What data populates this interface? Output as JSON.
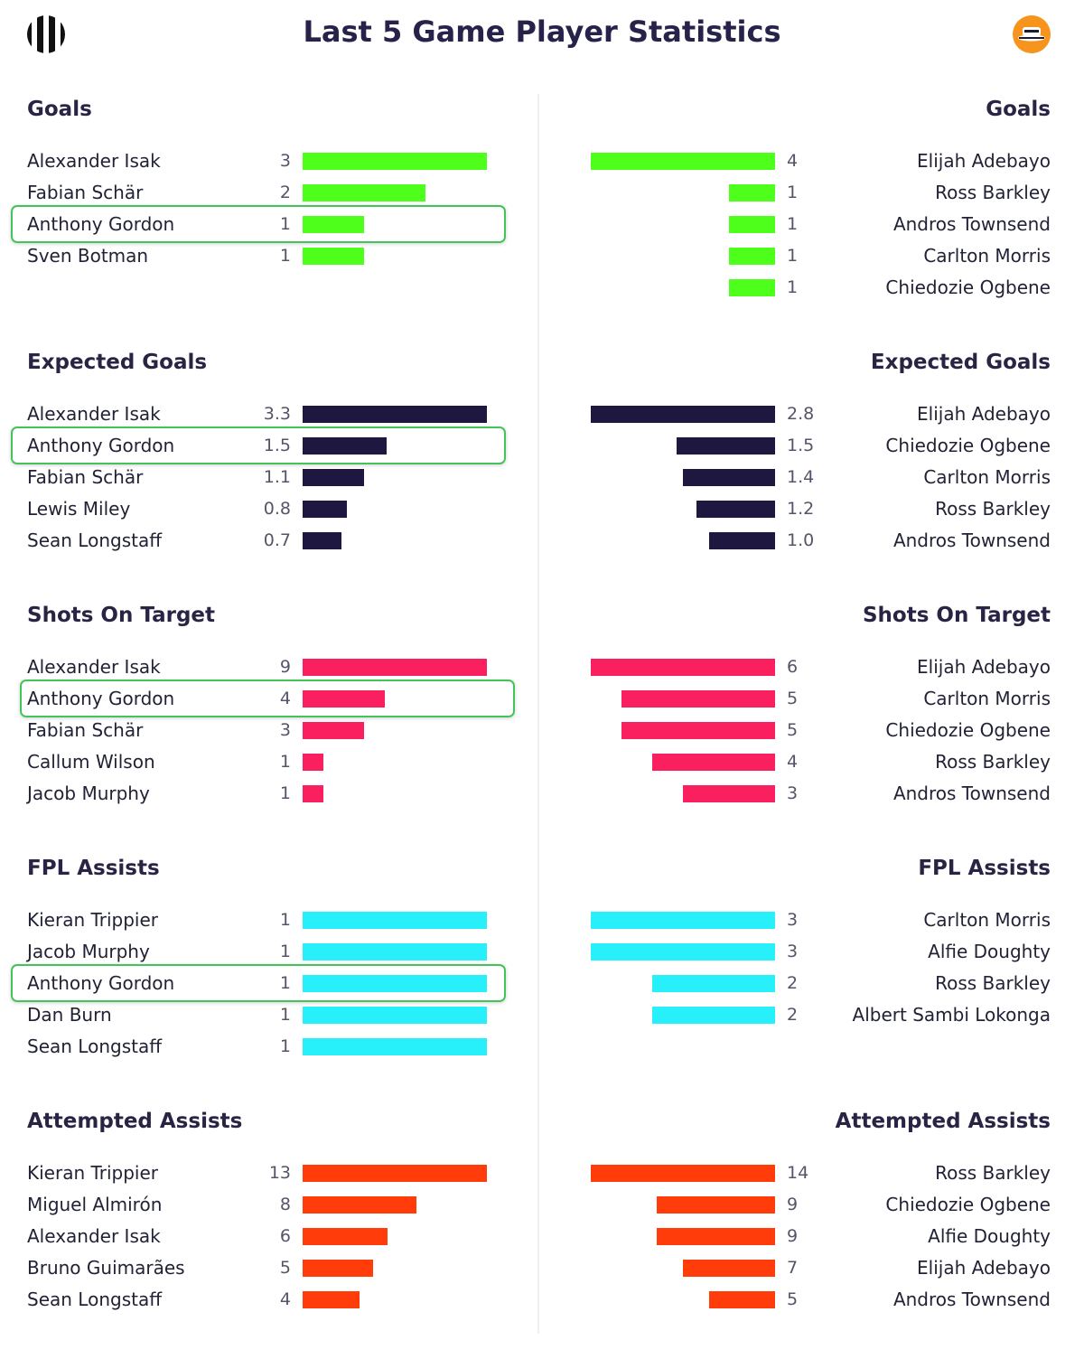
{
  "title": "Last 5 Game Player Statistics",
  "icons": {
    "left_logo": "newcastle-stripes-logo",
    "right_logo": "luton-hat-logo"
  },
  "chart_data": [
    {
      "type": "bar",
      "stat": "Goals",
      "color": "#4dff1a",
      "left": {
        "players": [
          {
            "name": "Alexander Isak",
            "value": 3,
            "label": "3"
          },
          {
            "name": "Fabian Schär",
            "value": 2,
            "label": "2"
          },
          {
            "name": "Anthony Gordon",
            "value": 1,
            "label": "1",
            "highlight": true
          },
          {
            "name": "Sven Botman",
            "value": 1,
            "label": "1"
          }
        ]
      },
      "right": {
        "players": [
          {
            "name": "Elijah Adebayo",
            "value": 4,
            "label": "4"
          },
          {
            "name": "Ross Barkley",
            "value": 1,
            "label": "1"
          },
          {
            "name": "Andros Townsend",
            "value": 1,
            "label": "1"
          },
          {
            "name": "Carlton Morris",
            "value": 1,
            "label": "1"
          },
          {
            "name": "Chiedozie Ogbene",
            "value": 1,
            "label": "1"
          }
        ]
      }
    },
    {
      "type": "bar",
      "stat": "Expected Goals",
      "color": "#1e1740",
      "left": {
        "players": [
          {
            "name": "Alexander Isak",
            "value": 3.3,
            "label": "3.3"
          },
          {
            "name": "Anthony Gordon",
            "value": 1.5,
            "label": "1.5",
            "highlight": true
          },
          {
            "name": "Fabian Schär",
            "value": 1.1,
            "label": "1.1"
          },
          {
            "name": "Lewis Miley",
            "value": 0.8,
            "label": "0.8"
          },
          {
            "name": "Sean Longstaff",
            "value": 0.7,
            "label": "0.7"
          }
        ]
      },
      "right": {
        "players": [
          {
            "name": "Elijah Adebayo",
            "value": 2.8,
            "label": "2.8"
          },
          {
            "name": "Chiedozie Ogbene",
            "value": 1.5,
            "label": "1.5"
          },
          {
            "name": "Carlton Morris",
            "value": 1.4,
            "label": "1.4"
          },
          {
            "name": "Ross Barkley",
            "value": 1.2,
            "label": "1.2"
          },
          {
            "name": "Andros Townsend",
            "value": 1.0,
            "label": "1.0"
          }
        ]
      }
    },
    {
      "type": "bar",
      "stat": "Shots On Target",
      "color": "#fa1f5f",
      "left": {
        "players": [
          {
            "name": "Alexander Isak",
            "value": 9,
            "label": "9"
          },
          {
            "name": "Anthony Gordon",
            "value": 4,
            "label": "4",
            "highlight": true
          },
          {
            "name": "Fabian Schär",
            "value": 3,
            "label": "3"
          },
          {
            "name": "Callum Wilson",
            "value": 1,
            "label": "1"
          },
          {
            "name": "Jacob Murphy",
            "value": 1,
            "label": "1"
          }
        ]
      },
      "right": {
        "players": [
          {
            "name": "Elijah Adebayo",
            "value": 6,
            "label": "6"
          },
          {
            "name": "Carlton Morris",
            "value": 5,
            "label": "5"
          },
          {
            "name": "Chiedozie Ogbene",
            "value": 5,
            "label": "5"
          },
          {
            "name": "Ross Barkley",
            "value": 4,
            "label": "4"
          },
          {
            "name": "Andros Townsend",
            "value": 3,
            "label": "3"
          }
        ]
      }
    },
    {
      "type": "bar",
      "stat": "FPL Assists",
      "color": "#27f0fa",
      "left": {
        "players": [
          {
            "name": "Kieran Trippier",
            "value": 1,
            "label": "1"
          },
          {
            "name": "Jacob Murphy",
            "value": 1,
            "label": "1"
          },
          {
            "name": "Anthony Gordon",
            "value": 1,
            "label": "1",
            "highlight": true
          },
          {
            "name": "Dan Burn",
            "value": 1,
            "label": "1"
          },
          {
            "name": "Sean Longstaff",
            "value": 1,
            "label": "1"
          }
        ]
      },
      "right": {
        "players": [
          {
            "name": "Carlton Morris",
            "value": 3,
            "label": "3"
          },
          {
            "name": "Alfie Doughty",
            "value": 3,
            "label": "3"
          },
          {
            "name": "Ross Barkley",
            "value": 2,
            "label": "2"
          },
          {
            "name": "Albert Sambi Lokonga",
            "value": 2,
            "label": "2"
          }
        ]
      }
    },
    {
      "type": "bar",
      "stat": "Attempted Assists",
      "color": "#ff3c0a",
      "left": {
        "players": [
          {
            "name": "Kieran Trippier",
            "value": 13,
            "label": "13"
          },
          {
            "name": "Miguel Almirón",
            "value": 8,
            "label": "8"
          },
          {
            "name": "Alexander Isak",
            "value": 6,
            "label": "6"
          },
          {
            "name": "Bruno Guimarães",
            "value": 5,
            "label": "5"
          },
          {
            "name": "Sean Longstaff",
            "value": 4,
            "label": "4"
          }
        ]
      },
      "right": {
        "players": [
          {
            "name": "Ross Barkley",
            "value": 14,
            "label": "14"
          },
          {
            "name": "Chiedozie Ogbene",
            "value": 9,
            "label": "9"
          },
          {
            "name": "Alfie Doughty",
            "value": 9,
            "label": "9"
          },
          {
            "name": "Elijah Adebayo",
            "value": 7,
            "label": "7"
          },
          {
            "name": "Andros Townsend",
            "value": 5,
            "label": "5"
          }
        ]
      }
    }
  ]
}
